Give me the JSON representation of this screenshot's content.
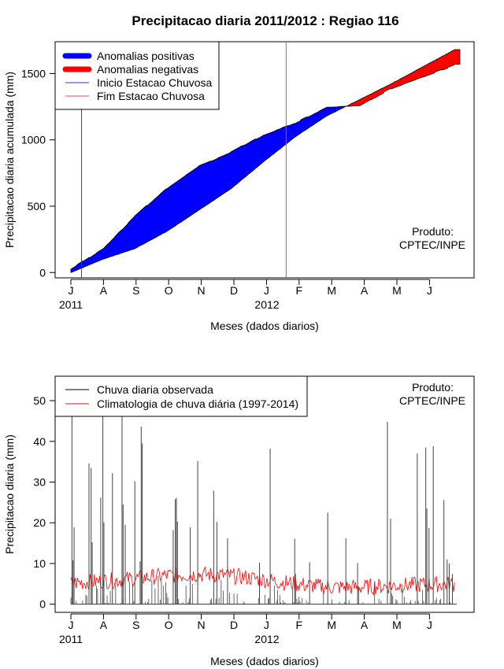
{
  "title": "Precipitacao diaria 2011/2012 : Regiao 116",
  "colors": {
    "positive": "#0000ff",
    "negative": "#ff0000",
    "start_line": "#3333cc",
    "end_line": "#ff4444",
    "observed": "#000000",
    "climatology": "#ff0000"
  },
  "chart_data": [
    {
      "type": "area",
      "ylabel": "Precipitacao diaria acumulada (mm)",
      "xlabel": "Meses (dados diarios)",
      "x_months": [
        "J",
        "A",
        "S",
        "O",
        "N",
        "D",
        "J",
        "F",
        "M",
        "A",
        "M",
        "J"
      ],
      "year_labels": [
        "2011",
        "2012"
      ],
      "yticks": [
        0,
        500,
        1000,
        1500
      ],
      "ylim": [
        -40,
        1740
      ],
      "x_days": [
        0,
        30,
        60,
        90,
        120,
        150,
        180,
        210,
        240,
        270,
        300,
        330,
        360
      ],
      "observed_cumulative": [
        20,
        175,
        420,
        630,
        800,
        900,
        1030,
        1120,
        1240,
        1250,
        1380,
        1470,
        1560
      ],
      "climatology_cumulative": [
        0,
        100,
        180,
        310,
        470,
        630,
        830,
        1020,
        1180,
        1300,
        1420,
        1550,
        1680
      ],
      "rainy_season_start_day": 10,
      "rainy_season_end_day": 202,
      "legend": [
        "Anomalias positivas",
        "Anomalias negativas",
        "Inicio Estacao Chuvosa",
        "Fim Estacao Chuvosa"
      ],
      "annotation": [
        "Produto:",
        "CPTEC/INPE"
      ]
    },
    {
      "type": "line",
      "ylabel": "Precipitacao diaria (mm)",
      "xlabel": "Meses (dados diarios)",
      "x_months": [
        "J",
        "A",
        "S",
        "O",
        "N",
        "D",
        "J",
        "F",
        "M",
        "A",
        "M",
        "J"
      ],
      "year_labels": [
        "2011",
        "2012"
      ],
      "yticks": [
        0,
        10,
        20,
        30,
        40,
        50
      ],
      "ylim": [
        -2,
        56
      ],
      "observed_daily_spikes": [
        {
          "day": 1,
          "value": 50
        },
        {
          "day": 2,
          "value": 10.8
        },
        {
          "day": 3,
          "value": 18.9
        },
        {
          "day": 17,
          "value": 34.6
        },
        {
          "day": 19,
          "value": 33.5
        },
        {
          "day": 20,
          "value": 15.2
        },
        {
          "day": 28,
          "value": 26.2
        },
        {
          "day": 30,
          "value": 50
        },
        {
          "day": 31,
          "value": 20.1
        },
        {
          "day": 39,
          "value": 32.2
        },
        {
          "day": 48,
          "value": 50
        },
        {
          "day": 49,
          "value": 24.5
        },
        {
          "day": 51,
          "value": 19.5
        },
        {
          "day": 60,
          "value": 30.2
        },
        {
          "day": 65,
          "value": 10.5
        },
        {
          "day": 66,
          "value": 43.6
        },
        {
          "day": 67,
          "value": 39.5
        },
        {
          "day": 96,
          "value": 18.2
        },
        {
          "day": 98,
          "value": 25.8
        },
        {
          "day": 99,
          "value": 26.1
        },
        {
          "day": 100,
          "value": 20.3
        },
        {
          "day": 112,
          "value": 18.9
        },
        {
          "day": 119,
          "value": 35.2
        },
        {
          "day": 134,
          "value": 27.9
        },
        {
          "day": 137,
          "value": 20.2
        },
        {
          "day": 147,
          "value": 16.2
        },
        {
          "day": 177,
          "value": 10.2
        },
        {
          "day": 187,
          "value": 38.2
        },
        {
          "day": 210,
          "value": 16.1
        },
        {
          "day": 224,
          "value": 10.3
        },
        {
          "day": 241,
          "value": 22.5
        },
        {
          "day": 258,
          "value": 16.2
        },
        {
          "day": 269,
          "value": 10.1
        },
        {
          "day": 297,
          "value": 44.8
        },
        {
          "day": 300,
          "value": 21.0
        },
        {
          "day": 325,
          "value": 37.0
        },
        {
          "day": 333,
          "value": 38.5
        },
        {
          "day": 334,
          "value": 23.5
        },
        {
          "day": 336,
          "value": 18.7
        },
        {
          "day": 340,
          "value": 38.8
        },
        {
          "day": 350,
          "value": 25.6
        },
        {
          "day": 353,
          "value": 11.0
        },
        {
          "day": 355,
          "value": 10.0
        },
        {
          "day": 358,
          "value": 7.4
        }
      ],
      "climatology_range_mm": [
        2,
        11.5
      ],
      "legend": [
        "Chuva diaria observada",
        "Climatologia de chuva diária (1997-2014)"
      ],
      "annotation": [
        "Produto:",
        "CPTEC/INPE"
      ]
    }
  ]
}
